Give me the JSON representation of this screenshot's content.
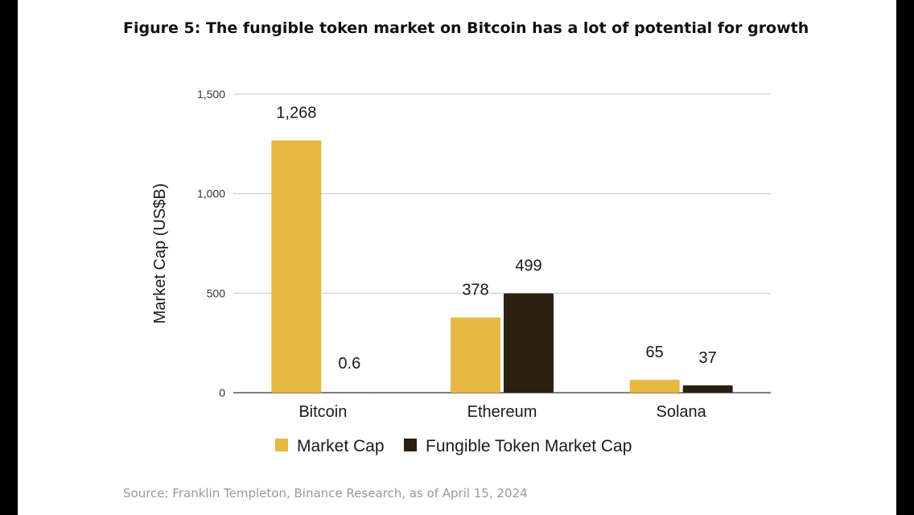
{
  "figure_title": "Figure 5: The fungible token market on Bitcoin has a lot of potential for growth",
  "source_note": "Source: Franklin Templeton, Binance Research, as of April 15, 2024",
  "chart_data": {
    "type": "bar",
    "title": "Figure 5: The fungible token market on Bitcoin has a lot of potential for growth",
    "xlabel": "",
    "ylabel": "Market Cap (US$B)",
    "ylim": [
      0,
      1500
    ],
    "yticks": [
      0,
      500,
      1000,
      1500
    ],
    "ytick_labels": [
      "0",
      "500",
      "1,000",
      "1,500"
    ],
    "grid": true,
    "legend_position": "bottom",
    "categories": [
      "Bitcoin",
      "Ethereum",
      "Solana"
    ],
    "series": [
      {
        "name": "Market Cap",
        "color": "#e6b943",
        "values": [
          1268,
          378,
          65
        ],
        "labels": [
          "1,268",
          "378",
          "65"
        ]
      },
      {
        "name": "Fungible Token Market Cap",
        "color": "#2b2111",
        "values": [
          0.6,
          499,
          37
        ],
        "labels": [
          "0.6",
          "499",
          "37"
        ]
      }
    ]
  }
}
